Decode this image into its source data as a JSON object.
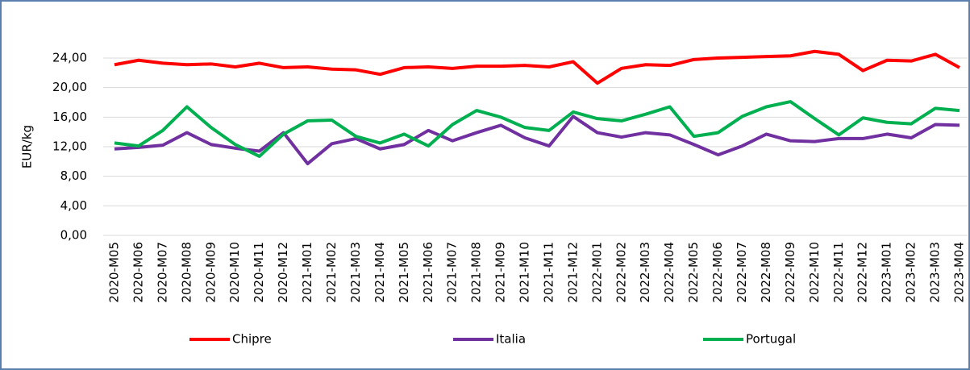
{
  "chart_data": {
    "type": "line",
    "y_label": "EUR/kg",
    "categories": [
      "2020-M05",
      "2020-M06",
      "2020-M07",
      "2020-M08",
      "2020-M09",
      "2020-M10",
      "2020-M11",
      "2020-M12",
      "2021-M01",
      "2021-M02",
      "2021-M03",
      "2021-M04",
      "2021-M05",
      "2021-M06",
      "2021-M07",
      "2021-M08",
      "2021-M09",
      "2021-M10",
      "2021-M11",
      "2021-M12",
      "2022-M01",
      "2022-M02",
      "2022-M03",
      "2022-M04",
      "2022-M05",
      "2022-M06",
      "2022-M07",
      "2022-M08",
      "2022-M09",
      "2022-M10",
      "2022-M11",
      "2022-M12",
      "2023-M01",
      "2023-M02",
      "2023-M03",
      "2023-M04"
    ],
    "series": [
      {
        "name": "Chipre",
        "color": "#ff0000",
        "values": [
          23.1,
          23.7,
          23.3,
          23.1,
          23.2,
          22.8,
          23.3,
          22.7,
          22.8,
          22.5,
          22.4,
          21.8,
          22.7,
          22.8,
          22.6,
          22.9,
          22.9,
          23.0,
          22.8,
          23.5,
          20.6,
          22.6,
          23.1,
          23.0,
          23.8,
          24.0,
          24.1,
          24.2,
          24.3,
          24.9,
          24.5,
          22.3,
          23.7,
          23.6,
          24.5,
          22.7
        ]
      },
      {
        "name": "Italia",
        "color": "#7030a0",
        "values": [
          11.7,
          11.9,
          12.2,
          13.9,
          12.3,
          11.8,
          11.4,
          13.9,
          9.7,
          12.4,
          13.1,
          11.7,
          12.3,
          14.2,
          12.8,
          13.9,
          14.9,
          13.2,
          12.1,
          16.1,
          13.9,
          13.3,
          13.9,
          13.6,
          12.3,
          10.9,
          12.1,
          13.7,
          12.8,
          12.7,
          13.1,
          13.1,
          13.7,
          13.2,
          15.0,
          14.9
        ]
      },
      {
        "name": "Portugal",
        "color": "#00b050",
        "values": [
          12.5,
          12.1,
          14.2,
          17.4,
          14.6,
          12.3,
          10.7,
          13.7,
          15.5,
          15.6,
          13.4,
          12.5,
          13.7,
          12.1,
          15.0,
          16.9,
          16.0,
          14.6,
          14.2,
          16.7,
          15.8,
          15.5,
          16.4,
          17.4,
          13.4,
          13.9,
          16.1,
          17.4,
          18.1,
          15.8,
          13.6,
          15.9,
          15.3,
          15.1,
          17.2,
          16.9
        ]
      }
    ],
    "ylim": [
      0,
      26.4
    ],
    "yticks": [
      {
        "value": 0,
        "label": "0,00"
      },
      {
        "value": 4,
        "label": "4,00"
      },
      {
        "value": 8,
        "label": "8,00"
      },
      {
        "value": 12,
        "label": "12,00"
      },
      {
        "value": 16,
        "label": "16,00"
      },
      {
        "value": 20,
        "label": "20,00"
      },
      {
        "value": 24,
        "label": "24,00"
      }
    ],
    "grid": true,
    "legend": "bottom"
  }
}
